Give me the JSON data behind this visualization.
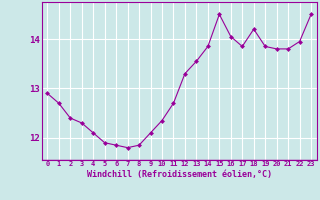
{
  "x": [
    0,
    1,
    2,
    3,
    4,
    5,
    6,
    7,
    8,
    9,
    10,
    11,
    12,
    13,
    14,
    15,
    16,
    17,
    18,
    19,
    20,
    21,
    22,
    23
  ],
  "y": [
    12.9,
    12.7,
    12.4,
    12.3,
    12.1,
    11.9,
    11.85,
    11.8,
    11.85,
    12.1,
    12.35,
    12.7,
    13.3,
    13.55,
    13.85,
    14.5,
    14.05,
    13.85,
    14.2,
    13.85,
    13.8,
    13.8,
    13.95,
    14.5
  ],
  "line_color": "#990099",
  "marker": "D",
  "marker_size": 2.5,
  "bg_color": "#cce8e8",
  "grid_color": "#ffffff",
  "xlabel": "Windchill (Refroidissement éolien,°C)",
  "xlabel_color": "#990099",
  "tick_color": "#990099",
  "axis_color": "#990099",
  "yticks": [
    12,
    13,
    14
  ],
  "ylim": [
    11.55,
    14.75
  ],
  "xlim": [
    -0.5,
    23.5
  ],
  "xticks": [
    0,
    1,
    2,
    3,
    4,
    5,
    6,
    7,
    8,
    9,
    10,
    11,
    12,
    13,
    14,
    15,
    16,
    17,
    18,
    19,
    20,
    21,
    22,
    23
  ]
}
